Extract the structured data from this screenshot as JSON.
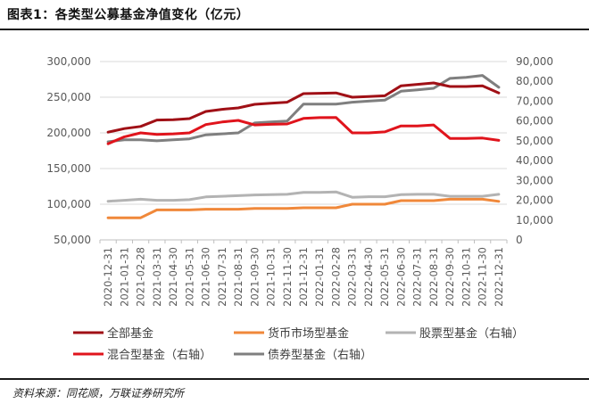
{
  "title": "图表1：各类型公募基金净值变化（亿元）",
  "source": "资料来源：同花顺，万联证券研究所",
  "chart_data": {
    "type": "line",
    "x": [
      "2020-12-31",
      "2021-01-31",
      "2021-02-28",
      "2021-03-31",
      "2021-04-30",
      "2021-05-31",
      "2021-06-30",
      "2021-07-31",
      "2021-08-31",
      "2021-09-30",
      "2021-10-31",
      "2021-11-30",
      "2021-12-31",
      "2022-01-31",
      "2022-02-28",
      "2022-03-31",
      "2022-04-30",
      "2022-05-31",
      "2022-06-30",
      "2022-07-31",
      "2022-08-31",
      "2022-09-30",
      "2022-10-31",
      "2022-11-30",
      "2022-12-31"
    ],
    "y_left": {
      "min": 50000,
      "max": 300000,
      "ticks": [
        "50,000",
        "100,000",
        "150,000",
        "200,000",
        "250,000",
        "300,000"
      ]
    },
    "y_right": {
      "min": 0,
      "max": 90000,
      "ticks": [
        "0",
        "10,000",
        "20,000",
        "30,000",
        "40,000",
        "50,000",
        "60,000",
        "70,000",
        "80,000",
        "90,000"
      ]
    },
    "series": [
      {
        "name": "全部基金",
        "axis": "left",
        "color": "#a01016",
        "values": [
          201000,
          206000,
          209000,
          218000,
          218500,
          220000,
          230000,
          233000,
          235000,
          240000,
          241500,
          243000,
          255000,
          255500,
          256000,
          250000,
          251000,
          252000,
          266000,
          268000,
          270000,
          265000,
          265000,
          266000,
          256000
        ]
      },
      {
        "name": "货币市场型基金",
        "axis": "left",
        "color": "#f0883a",
        "values": [
          81000,
          81000,
          81000,
          92000,
          92000,
          92000,
          93000,
          93000,
          93000,
          94000,
          94000,
          94000,
          95000,
          95000,
          95000,
          100000,
          100000,
          100000,
          105000,
          105000,
          105000,
          107000,
          107000,
          107000,
          104000
        ]
      },
      {
        "name": "股票型基金（右轴）",
        "axis": "right",
        "color": "#b3b3b3",
        "values": [
          19500,
          20000,
          20500,
          20000,
          20000,
          20300,
          21700,
          22000,
          22300,
          22700,
          22800,
          23000,
          24000,
          24000,
          24200,
          21500,
          21800,
          21800,
          22800,
          23000,
          23000,
          22000,
          22000,
          22000,
          23000
        ]
      },
      {
        "name": "混合型基金（右轴）",
        "axis": "right",
        "color": "#e0141c",
        "values": [
          48500,
          52000,
          54000,
          53200,
          53500,
          54000,
          58200,
          59500,
          60300,
          58000,
          58300,
          58500,
          61300,
          61700,
          61800,
          54000,
          54000,
          54500,
          57500,
          57500,
          58000,
          51200,
          51200,
          51400,
          50200
        ]
      },
      {
        "name": "债券型基金（右轴）",
        "axis": "right",
        "color": "#7f7f7f",
        "values": [
          49500,
          50500,
          50500,
          50000,
          50500,
          51000,
          53000,
          53500,
          54000,
          59000,
          59500,
          60000,
          68500,
          68500,
          68500,
          69500,
          70000,
          70500,
          75000,
          75700,
          76500,
          81500,
          82000,
          83000,
          77000
        ]
      }
    ],
    "legend": [
      "全部基金",
      "货币市场型基金",
      "股票型基金（右轴）",
      "混合型基金（右轴）",
      "债券型基金（右轴）"
    ]
  }
}
